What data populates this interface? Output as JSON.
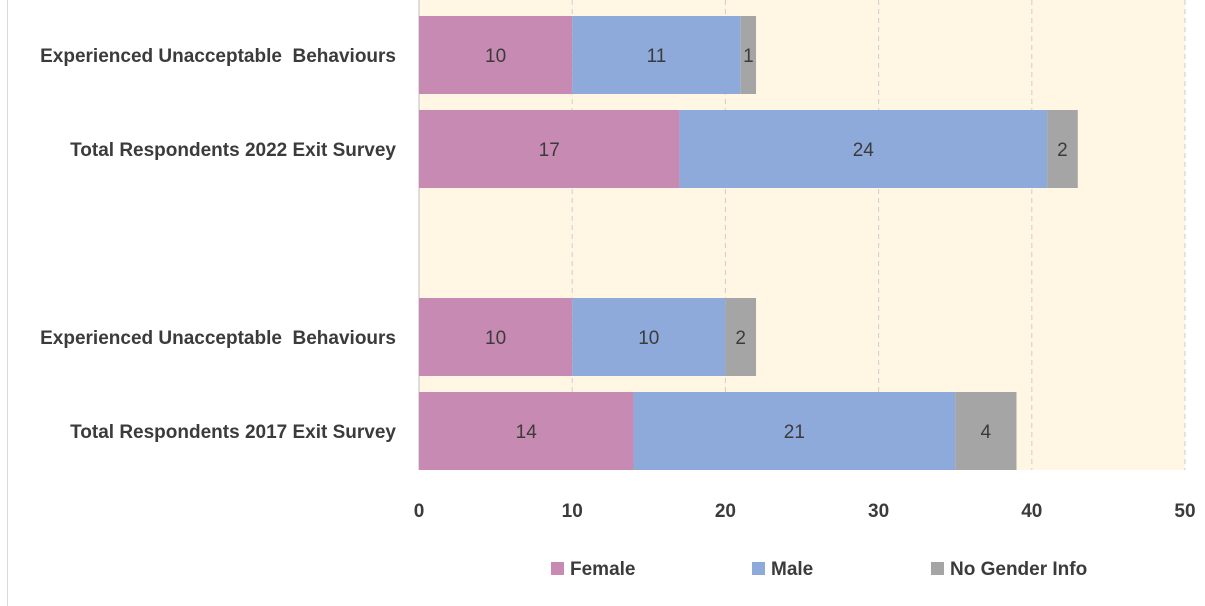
{
  "chart_data": {
    "type": "bar",
    "orientation": "horizontal",
    "stacked": true,
    "categories": [
      "Experienced Unacceptable  Behaviours",
      "Total Respondents 2022 Exit Survey",
      "",
      "Experienced Unacceptable  Behaviours",
      "Total Respondents 2017 Exit Survey"
    ],
    "series": [
      {
        "name": "Female",
        "color": "#c78bb3",
        "values": [
          10,
          17,
          null,
          10,
          14
        ]
      },
      {
        "name": "Male",
        "color": "#8eaadb",
        "values": [
          11,
          24,
          null,
          10,
          21
        ]
      },
      {
        "name": "No Gender Info",
        "color": "#a5a5a5",
        "values": [
          1,
          2,
          null,
          2,
          4
        ]
      }
    ],
    "xlim": [
      0,
      50
    ],
    "xticks": [
      0,
      10,
      20,
      30,
      40,
      50
    ],
    "xlabel": "",
    "ylabel": "",
    "title": "",
    "grid": "vertical dashed",
    "plot_background": "#fff6e3",
    "legend_position": "bottom"
  }
}
